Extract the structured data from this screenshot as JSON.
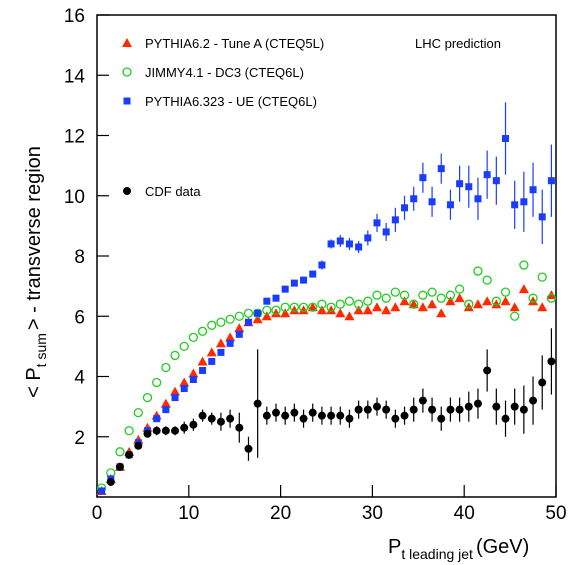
{
  "chart_data": {
    "type": "scatter",
    "annotation": "LHC prediction",
    "xlabel_parts": [
      "P",
      "t leading jet",
      "(GeV)"
    ],
    "ylabel_parts": [
      "< P",
      "t sum",
      "> - transverse region"
    ],
    "xlim": [
      0,
      50
    ],
    "ylim": [
      0,
      16
    ],
    "xticks": [
      0,
      10,
      20,
      30,
      40,
      50
    ],
    "yticks": [
      2,
      4,
      6,
      8,
      10,
      12,
      14,
      16
    ],
    "x": [
      0.5,
      1.5,
      2.5,
      3.5,
      4.5,
      5.5,
      6.5,
      7.5,
      8.5,
      9.5,
      10.5,
      11.5,
      12.5,
      13.5,
      14.5,
      15.5,
      16.5,
      17.5,
      18.5,
      19.5,
      20.5,
      21.5,
      22.5,
      23.5,
      24.5,
      25.5,
      26.5,
      27.5,
      28.5,
      29.5,
      30.5,
      31.5,
      32.5,
      33.5,
      34.5,
      35.5,
      36.5,
      37.5,
      38.5,
      39.5,
      40.5,
      41.5,
      42.5,
      43.5,
      44.5,
      45.5,
      46.5,
      47.5,
      48.5,
      49.5
    ],
    "series": [
      {
        "name": "PYTHIA6.2 - Tune A (CTEQ5L)",
        "color": "#ff2a00",
        "marker": "triangle",
        "values": [
          0.2,
          0.6,
          1.0,
          1.5,
          1.9,
          2.3,
          2.7,
          3.1,
          3.5,
          3.8,
          4.1,
          4.5,
          4.8,
          5.1,
          5.3,
          5.6,
          5.8,
          5.9,
          6.0,
          6.1,
          6.1,
          6.2,
          6.2,
          6.3,
          6.2,
          6.2,
          6.1,
          6.0,
          6.2,
          6.2,
          6.3,
          6.2,
          6.3,
          6.5,
          6.4,
          6.3,
          6.4,
          6.1,
          6.5,
          6.6,
          6.3,
          6.4,
          6.5,
          6.4,
          6.5,
          6.3,
          6.9,
          6.5,
          6.3,
          6.7
        ]
      },
      {
        "name": "JIMMY4.1 - DC3 (CTEQ6L)",
        "color": "#22cc22",
        "marker": "open-circle",
        "values": [
          0.3,
          0.8,
          1.5,
          2.2,
          2.8,
          3.3,
          3.8,
          4.3,
          4.7,
          5.0,
          5.3,
          5.5,
          5.7,
          5.8,
          5.9,
          6.0,
          6.1,
          6.1,
          6.2,
          6.2,
          6.3,
          6.3,
          6.3,
          6.3,
          6.4,
          6.3,
          6.4,
          6.5,
          6.4,
          6.5,
          6.7,
          6.6,
          6.8,
          6.7,
          6.4,
          6.7,
          6.8,
          6.6,
          6.7,
          6.9,
          6.4,
          7.5,
          7.2,
          6.5,
          6.8,
          6.0,
          7.7,
          6.6,
          7.3,
          6.6
        ]
      },
      {
        "name": "PYTHIA6.323 - UE (CTEQ6L)",
        "color": "#1a3cff",
        "marker": "square",
        "values": [
          0.2,
          0.6,
          1.0,
          1.4,
          1.8,
          2.2,
          2.6,
          2.9,
          3.3,
          3.6,
          3.9,
          4.2,
          4.5,
          4.8,
          5.1,
          5.4,
          5.8,
          6.1,
          6.5,
          6.6,
          6.9,
          7.1,
          7.2,
          7.4,
          7.7,
          8.4,
          8.5,
          8.4,
          8.3,
          8.6,
          9.1,
          8.8,
          9.2,
          9.6,
          9.9,
          10.6,
          9.8,
          10.9,
          9.7,
          10.4,
          10.3,
          9.9,
          10.7,
          10.5,
          11.9,
          9.7,
          9.8,
          10.2,
          9.3,
          10.5
        ],
        "errors": [
          0.05,
          0.05,
          0.05,
          0.05,
          0.05,
          0.05,
          0.05,
          0.05,
          0.05,
          0.05,
          0.05,
          0.05,
          0.05,
          0.1,
          0.1,
          0.1,
          0.1,
          0.1,
          0.1,
          0.1,
          0.1,
          0.1,
          0.1,
          0.1,
          0.15,
          0.15,
          0.2,
          0.2,
          0.2,
          0.25,
          0.3,
          0.3,
          0.4,
          0.4,
          0.4,
          0.5,
          0.5,
          0.5,
          0.5,
          0.6,
          0.7,
          0.7,
          0.8,
          0.8,
          1.2,
          0.8,
          1.0,
          0.9,
          0.9,
          1.2
        ]
      },
      {
        "name": "CDF data",
        "color": "#000000",
        "marker": "circle",
        "values": [
          null,
          0.5,
          1.0,
          1.4,
          1.7,
          2.1,
          2.2,
          2.2,
          2.2,
          2.3,
          2.4,
          2.7,
          2.6,
          2.5,
          2.6,
          2.3,
          1.6,
          3.1,
          2.7,
          2.8,
          2.7,
          2.8,
          2.6,
          2.8,
          2.7,
          2.7,
          2.7,
          2.6,
          2.9,
          2.9,
          3.0,
          2.9,
          2.6,
          2.7,
          2.9,
          3.2,
          2.9,
          2.6,
          2.9,
          2.9,
          3.0,
          3.1,
          4.2,
          3.0,
          2.6,
          3.0,
          2.9,
          3.2,
          3.8,
          4.5
        ],
        "errors": [
          null,
          0.1,
          0.1,
          0.1,
          0.1,
          0.1,
          0.15,
          0.15,
          0.15,
          0.2,
          0.2,
          0.2,
          0.2,
          0.3,
          0.3,
          0.5,
          0.4,
          1.8,
          0.3,
          0.3,
          0.3,
          0.3,
          0.3,
          0.3,
          0.3,
          0.3,
          0.3,
          0.3,
          0.3,
          0.3,
          0.3,
          0.3,
          0.3,
          0.3,
          0.4,
          0.4,
          0.4,
          0.4,
          0.4,
          0.4,
          0.5,
          0.5,
          0.7,
          0.6,
          0.6,
          0.6,
          0.8,
          0.8,
          0.9,
          1.1
        ]
      }
    ]
  }
}
